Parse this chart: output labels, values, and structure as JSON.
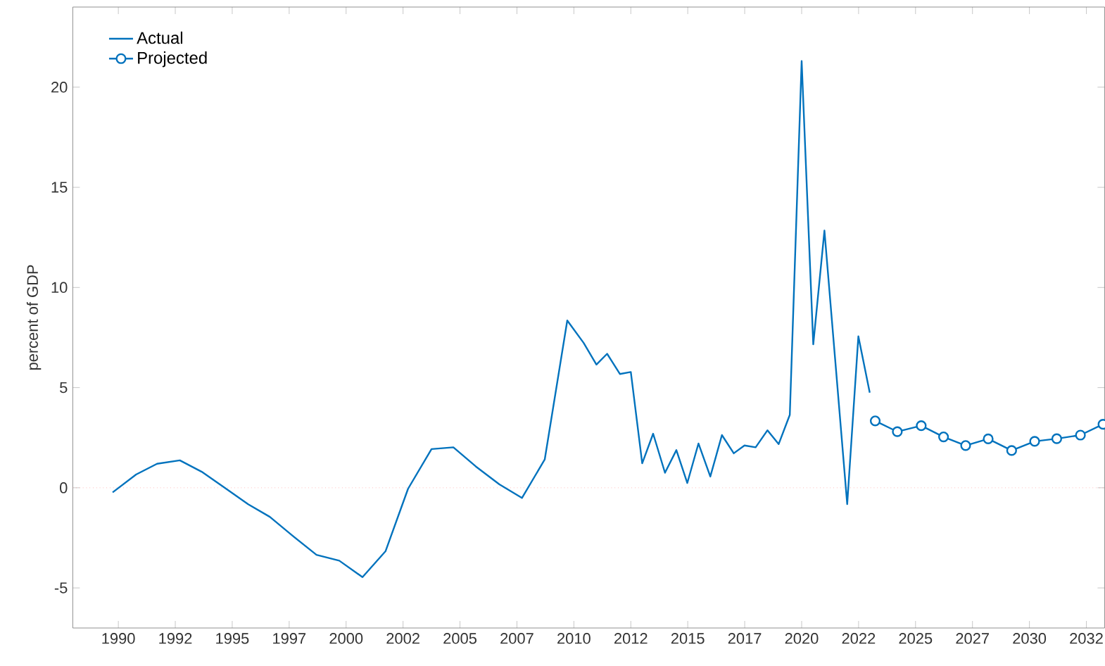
{
  "chart_data": {
    "type": "line",
    "ylabel": "percent of GDP",
    "xlim": [
      1988,
      2033.3
    ],
    "ylim": [
      -7,
      24
    ],
    "xticks": [
      1990,
      {
        "value": 1992.5,
        "label": "1992"
      },
      1995,
      {
        "value": 1997.5,
        "label": "1997"
      },
      2000,
      {
        "value": 2002.5,
        "label": "2002"
      },
      2005,
      {
        "value": 2007.5,
        "label": "2007"
      },
      2010,
      {
        "value": 2012.5,
        "label": "2012"
      },
      2015,
      {
        "value": 2017.5,
        "label": "2017"
      },
      2020,
      {
        "value": 2022.5,
        "label": "2022"
      },
      2025,
      {
        "value": 2027.5,
        "label": "2027"
      },
      2030,
      {
        "value": 2032.5,
        "label": "2032"
      }
    ],
    "yticks": [
      -5,
      0,
      5,
      10,
      15,
      20
    ],
    "grid": false,
    "legend": "top left",
    "line_style": "solid",
    "ref_lines": [
      {
        "axis": "y",
        "value": 0,
        "color": "#ff9999",
        "line_style": "dotted"
      }
    ],
    "series": [
      {
        "name": "Actual",
        "color": "#0072bd",
        "marker": "none",
        "x": [
          1989.75,
          1990.78,
          1991.7,
          1992.7,
          1993.66,
          1994.7,
          1995.7,
          1996.65,
          1997.6,
          1998.7,
          1999.7,
          2000.72,
          2001.73,
          2002.72,
          2003.75,
          2004.71,
          2005.7,
          2006.73,
          2007.72,
          2008.72,
          2009.71,
          2010.43,
          2010.99,
          2011.46,
          2012.02,
          2012.5,
          2013.0,
          2013.48,
          2014.0,
          2014.5,
          2014.98,
          2015.47,
          2015.99,
          2016.5,
          2017.02,
          2017.49,
          2017.98,
          2018.5,
          2018.99,
          2019.48,
          2020.0,
          2020.51,
          2021.0,
          2022.0,
          2022.49,
          2022.99
        ],
        "values": [
          -0.23,
          0.66,
          1.2,
          1.37,
          0.8,
          -0.02,
          -0.82,
          -1.45,
          -2.35,
          -3.35,
          -3.64,
          -4.46,
          -3.17,
          -0.05,
          1.93,
          2.02,
          1.06,
          0.17,
          -0.51,
          1.41,
          8.35,
          7.23,
          6.15,
          6.69,
          5.68,
          5.78,
          1.22,
          2.7,
          0.75,
          1.88,
          0.24,
          2.21,
          0.56,
          2.63,
          1.72,
          2.11,
          2.02,
          2.87,
          2.18,
          3.64,
          21.3,
          7.16,
          12.84,
          -0.82,
          7.56,
          4.75
        ]
      },
      {
        "name": "Projected",
        "color": "#0072bd",
        "marker": "circle",
        "x": [
          2023.23,
          2024.2,
          2025.25,
          2026.23,
          2027.2,
          2028.19,
          2029.22,
          2030.23,
          2031.2,
          2032.24,
          2033.23
        ],
        "values": [
          3.34,
          2.8,
          3.1,
          2.54,
          2.11,
          2.44,
          1.86,
          2.32,
          2.45,
          2.63,
          3.17
        ]
      }
    ]
  }
}
